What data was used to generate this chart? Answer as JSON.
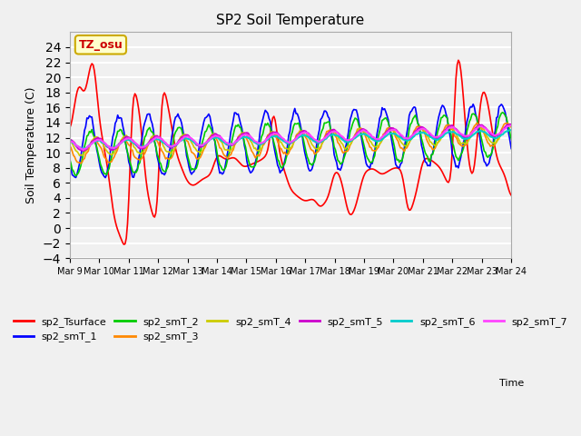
{
  "title": "SP2 Soil Temperature",
  "ylabel": "Soil Temperature (C)",
  "xlabel": "Time",
  "time_label": "Time",
  "ylim": [
    -4,
    26
  ],
  "yticks": [
    -4,
    -2,
    0,
    2,
    4,
    6,
    8,
    10,
    12,
    14,
    16,
    18,
    20,
    22,
    24
  ],
  "xtick_labels": [
    "Mar 9",
    "Mar 10",
    "Mar 11",
    "Mar 12",
    "Mar 13",
    "Mar 14",
    "Mar 15",
    "Mar 16",
    "Mar 17",
    "Mar 18",
    "Mar 19",
    "Mar 20",
    "Mar 21",
    "Mar 22",
    "Mar 23",
    "Mar 24"
  ],
  "annotation_text": "TZ_osu",
  "annotation_color": "#cc0000",
  "annotation_bg": "#ffffcc",
  "annotation_border": "#ccaa00",
  "series_colors": {
    "sp2_Tsurface": "#ff0000",
    "sp2_smT_1": "#0000ff",
    "sp2_smT_2": "#00cc00",
    "sp2_smT_3": "#ff8800",
    "sp2_smT_4": "#cccc00",
    "sp2_smT_5": "#cc00cc",
    "sp2_smT_6": "#00cccc",
    "sp2_smT_7": "#ff44ff"
  },
  "background_color": "#e8e8e8",
  "plot_bg_color": "#f0f0f0",
  "grid_color": "#ffffff",
  "num_points": 360
}
